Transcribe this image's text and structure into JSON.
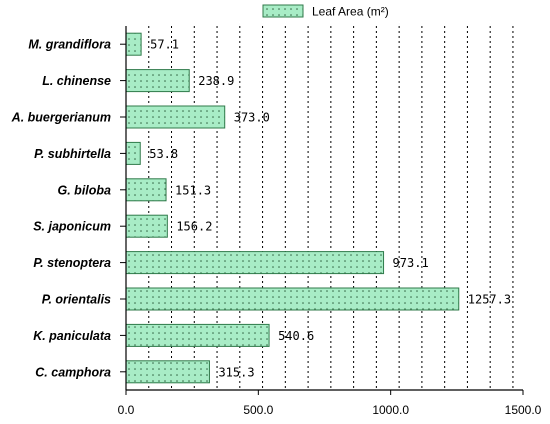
{
  "chart_data": {
    "type": "bar",
    "orientation": "horizontal",
    "categories": [
      "M. grandiflora",
      "L. chinense",
      "A. buergerianum",
      "P. subhirtella",
      "G. biloba",
      "S. japonicum",
      "P. stenoptera",
      "P. orientalis",
      "K. paniculata",
      "C. camphora"
    ],
    "series": [
      {
        "name": "Leaf Area (m²)",
        "values": [
          57.1,
          238.9,
          373.0,
          53.8,
          151.3,
          156.2,
          973.1,
          1257.3,
          540.6,
          315.3
        ],
        "labels": [
          "57.1",
          "238.9",
          "373.0",
          "53.8",
          "151.3",
          "156.2",
          "973.1",
          "1257.3",
          "540.6",
          "315.3"
        ]
      }
    ],
    "xticks": [
      0,
      500,
      1000,
      1500
    ],
    "xtick_labels": [
      "0.0",
      "500.0",
      "1000.0",
      "1500.0"
    ],
    "xlim": [
      0,
      1500
    ],
    "grid_x": [
      86,
      172,
      258,
      344,
      430,
      516,
      602,
      688,
      774,
      860,
      946,
      1032,
      1118,
      1204,
      1290,
      1376,
      1462
    ],
    "legend_position": "top",
    "colors": {
      "bar_fill": "#a8ecc6",
      "bar_stroke": "#2f7a4a",
      "dot": "#2b5a3a"
    }
  }
}
